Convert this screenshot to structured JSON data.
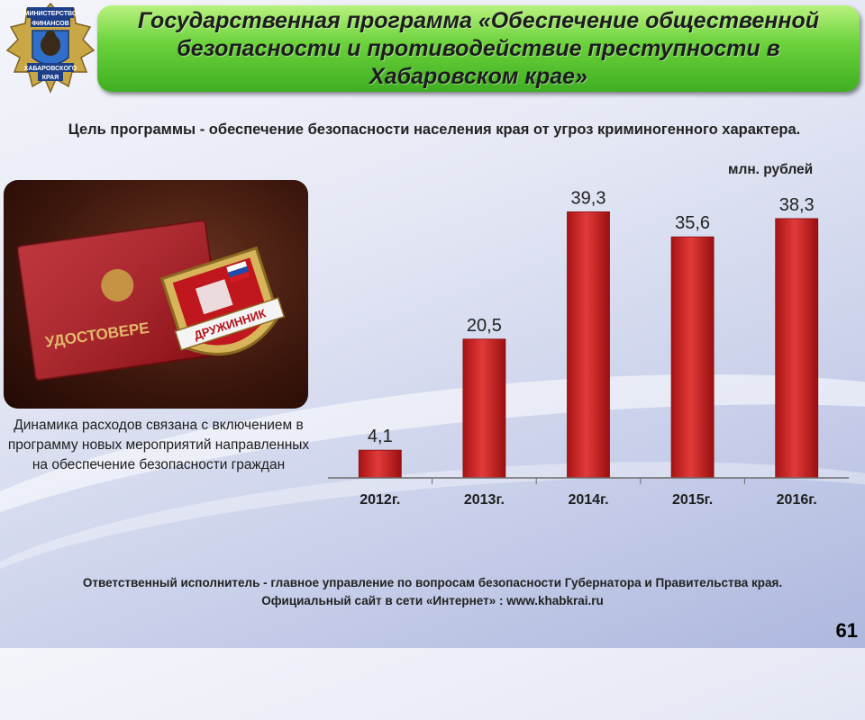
{
  "emblem": {
    "line1": "МИНИСТЕРСТВО",
    "line2": "ФИНАНСОВ",
    "line3": "ХАБАРОВСКОГО",
    "line4": "КРАЯ"
  },
  "title": "Государственная программа «Обеспечение общественной безопасности и противодействие преступности в  Хабаровском крае»",
  "goal": "Цель программы - обеспечение безопасности населения края от угроз криминогенного характера.",
  "unit_label": "млн. рублей",
  "photo": {
    "id_text": "УДОСТОВЕРЕ",
    "badge_text": "ДРУЖИННИК"
  },
  "caption": "Динамика расходов связана с включением в программу новых мероприятий направленных на обеспечение безопасности граждан",
  "chart_data": {
    "type": "bar",
    "categories": [
      "2012г.",
      "2013г.",
      "2014г.",
      "2015г.",
      "2016г."
    ],
    "values": [
      4.1,
      20.5,
      39.3,
      35.6,
      38.3
    ],
    "value_labels": [
      "4,1",
      "20,5",
      "39,3",
      "35,6",
      "38,3"
    ],
    "ylabel": "млн. рублей",
    "ylim": [
      0,
      44
    ],
    "grid": false,
    "bar_color": "#d42a2a"
  },
  "footer": {
    "line1": "Ответственный исполнитель - главное управление по вопросам безопасности Губернатора и Правительства края.",
    "line2": "Официальный сайт в сети «Интернет» :  www.khabkrai.ru"
  },
  "page_number": "61"
}
